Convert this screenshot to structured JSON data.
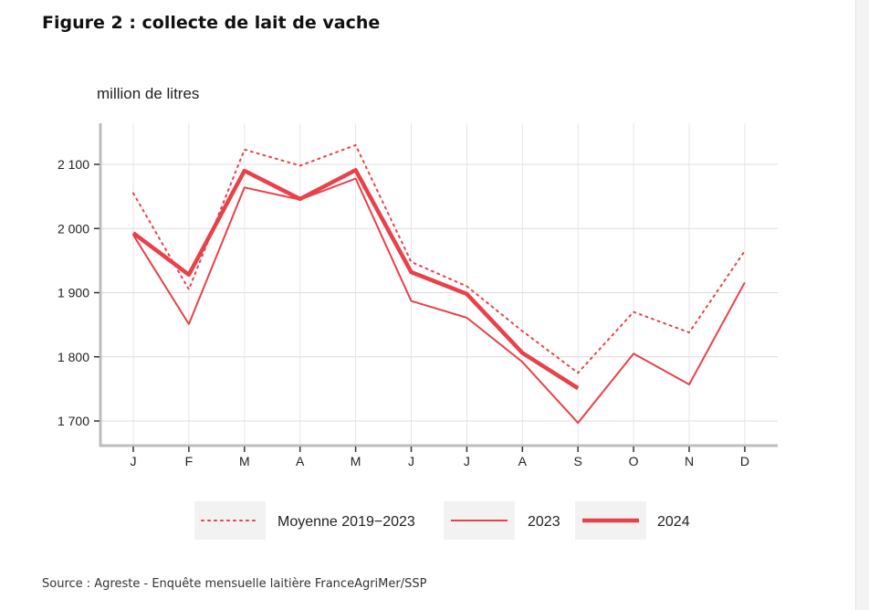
{
  "title": "Figure 2 : collecte de lait de vache",
  "source": "Source : Agreste - Enquête mensuelle laitière FranceAgriMer/SSP",
  "chart_data": {
    "type": "line",
    "ylabel": "million de litres",
    "categories": [
      "J",
      "F",
      "M",
      "A",
      "M",
      "J",
      "J",
      "A",
      "S",
      "O",
      "N",
      "D"
    ],
    "ylim": [
      1680,
      2180
    ],
    "yticks": [
      1700,
      1800,
      1900,
      2000,
      2100
    ],
    "ytick_labels": [
      "1 700",
      "1 800",
      "1 900",
      "2 000",
      "2 100"
    ],
    "grid": true,
    "legend_position": "bottom",
    "series": [
      {
        "name": "Moyenne 2019−2023",
        "style": "dotted",
        "color": "#e8414a",
        "values": [
          2055,
          1905,
          2123,
          2098,
          2130,
          1948,
          1910,
          1840,
          1775,
          1870,
          1838,
          1965
        ]
      },
      {
        "name": "2023",
        "style": "thin",
        "color": "#e8414a",
        "values": [
          1990,
          1851,
          2064,
          2045,
          2078,
          1887,
          1861,
          1792,
          1697,
          1805,
          1757,
          1916
        ]
      },
      {
        "name": "2024",
        "style": "thick",
        "color": "#e8414a",
        "values": [
          1993,
          1928,
          2090,
          2046,
          2091,
          1932,
          1898,
          1806,
          1751,
          null,
          null,
          null
        ]
      }
    ]
  }
}
